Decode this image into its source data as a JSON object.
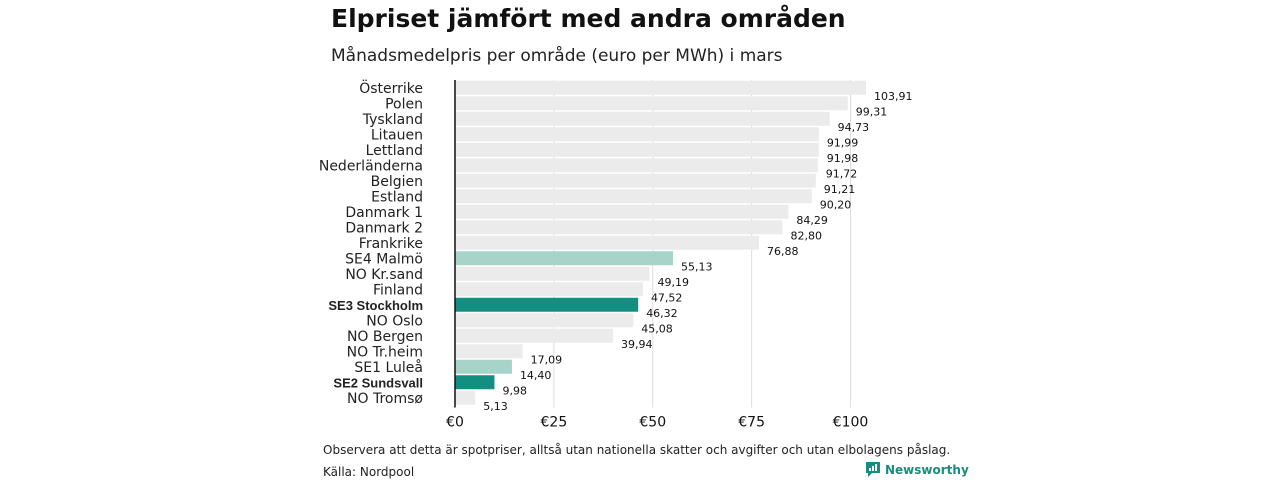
{
  "header": {
    "title": "Elpriset jämfört med andra områden",
    "subtitle": "Månadsmedelpris per område (euro per MWh) i mars"
  },
  "footer": {
    "note": "Observera att detta är spotpriser, alltså utan nationella skatter och avgifter och utan elbolagens påslag.",
    "source": "Källa: Nordpool",
    "brand": "Newsworthy"
  },
  "colors": {
    "default_bar": "#ebebeb",
    "highlight_light": "#a7d3c8",
    "highlight_dark": "#138f82",
    "axis": "#111111",
    "grid": "#dddddd",
    "brand": "#1a8c7e"
  },
  "chart_data": {
    "type": "bar",
    "orientation": "horizontal",
    "title": "Elpriset jämfört med andra områden",
    "subtitle": "Månadsmedelpris per område (euro per MWh) i mars",
    "xlim": [
      0,
      110
    ],
    "x_ticks": [
      0,
      25,
      50,
      75,
      100
    ],
    "x_tick_labels": [
      "€0",
      "€25",
      "€50",
      "€75",
      "€100"
    ],
    "grid": true,
    "categories": [
      "Österrike",
      "Polen",
      "Tyskland",
      "Litauen",
      "Lettland",
      "Nederländerna",
      "Belgien",
      "Estland",
      "Danmark 1",
      "Danmark 2",
      "Frankrike",
      "SE4 Malmö",
      "NO Kr.sand",
      "Finland",
      "SE3 Stockholm",
      "NO Oslo",
      "NO Bergen",
      "NO Tr.heim",
      "SE1 Luleå",
      "SE2 Sundsvall",
      "NO Tromsø"
    ],
    "values": [
      103.91,
      99.31,
      94.73,
      91.99,
      91.98,
      91.72,
      91.21,
      90.2,
      84.29,
      82.8,
      76.88,
      55.13,
      49.19,
      47.52,
      46.32,
      45.08,
      39.94,
      17.09,
      14.4,
      9.98,
      5.13
    ],
    "value_labels": [
      "103,91",
      "99,31",
      "94,73",
      "91,99",
      "91,98",
      "91,72",
      "91,21",
      "90,20",
      "84,29",
      "82,80",
      "76,88",
      "55,13",
      "49,19",
      "47,52",
      "46,32",
      "45,08",
      "39,94",
      "17,09",
      "14,40",
      "9,98",
      "5,13"
    ],
    "highlight": [
      "none",
      "none",
      "none",
      "none",
      "none",
      "none",
      "none",
      "none",
      "none",
      "none",
      "none",
      "light",
      "none",
      "none",
      "dark",
      "none",
      "none",
      "none",
      "light",
      "dark",
      "none"
    ],
    "bold_labels": [
      "SE3 Stockholm",
      "SE2 Sundsvall"
    ]
  }
}
